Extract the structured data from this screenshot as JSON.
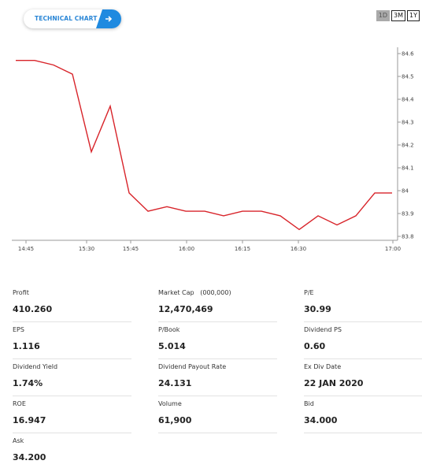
{
  "header": {
    "technical_chart_label": "TECHNICAL CHART",
    "arrow_icon": "arrow-right-icon",
    "ranges": [
      {
        "label": "1D",
        "active": true
      },
      {
        "label": "3M",
        "active": false
      },
      {
        "label": "1Y",
        "active": false
      }
    ]
  },
  "chart_data": {
    "type": "line",
    "series": [
      {
        "color": "#d8242a",
        "points": [
          [
            "14:45",
            84.57
          ],
          [
            "14:50",
            84.57
          ],
          [
            "14:55",
            84.55
          ],
          [
            "15:00",
            84.51
          ],
          [
            "15:05",
            84.17
          ],
          [
            "15:10",
            84.37
          ],
          [
            "15:15",
            83.99
          ],
          [
            "15:20",
            83.91
          ],
          [
            "15:25",
            83.93
          ],
          [
            "15:30",
            83.91
          ],
          [
            "15:35",
            83.91
          ],
          [
            "15:40",
            83.89
          ],
          [
            "15:45",
            83.91
          ],
          [
            "15:50",
            83.91
          ],
          [
            "15:55",
            83.89
          ],
          [
            "16:00",
            83.83
          ],
          [
            "16:05",
            83.89
          ],
          [
            "16:10",
            83.85
          ],
          [
            "16:15",
            83.89
          ],
          [
            "16:20",
            83.99
          ],
          [
            "16:25",
            83.99
          ]
        ]
      }
    ],
    "x_tick_labels": [
      "14:45",
      "15:30",
      "15:45",
      "16:00",
      "16:15",
      "16:30",
      "17:00"
    ],
    "y_tick_labels": [
      "84.6",
      "84.5",
      "84.4",
      "84.3",
      "84.2",
      "84.1",
      "84",
      "83.9",
      "83.8"
    ],
    "ylim": [
      83.8,
      84.6
    ],
    "grid": false,
    "y_axis_side": "right"
  },
  "stats": [
    {
      "label": "Profit",
      "value": "410.260"
    },
    {
      "label": "Market Cap   (000,000)",
      "value": "12,470,469"
    },
    {
      "label": "P/E",
      "value": "30.99"
    },
    {
      "label": "EPS",
      "value": "1.116"
    },
    {
      "label": "P/Book",
      "value": "5.014"
    },
    {
      "label": "Dividend PS",
      "value": "0.60"
    },
    {
      "label": "Dividend Yield",
      "value": "1.74%"
    },
    {
      "label": "Dividend Payout Rate",
      "value": "24.131"
    },
    {
      "label": "Ex Div Date",
      "value": "22 JAN 2020"
    },
    {
      "label": "ROE",
      "value": "16.947"
    },
    {
      "label": "Volume",
      "value": "61,900"
    },
    {
      "label": "Bid",
      "value": "34.000"
    },
    {
      "label": "Ask",
      "value": "34.200"
    }
  ]
}
